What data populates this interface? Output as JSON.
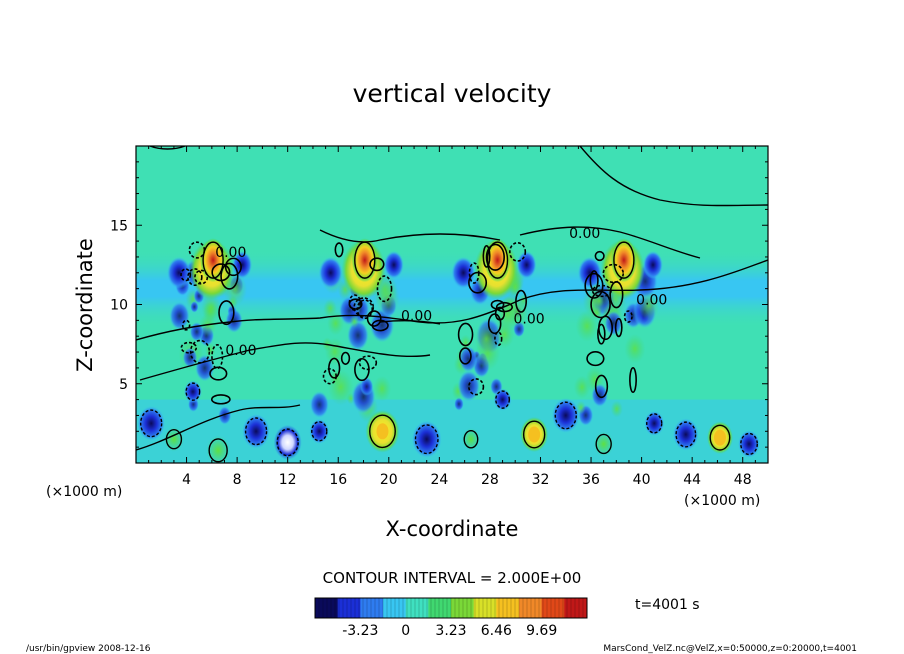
{
  "chart_data": {
    "type": "heatmap",
    "title": "vertical velocity",
    "xlabel": "X-coordinate",
    "ylabel": "Z-coordinate",
    "x_unit_left": "(×1000 m)",
    "x_unit_right": "(×1000 m)",
    "xlim": [
      0,
      50
    ],
    "ylim": [
      0,
      20
    ],
    "x_ticks": [
      4,
      8,
      12,
      16,
      20,
      24,
      28,
      32,
      36,
      40,
      44,
      48
    ],
    "y_ticks": [
      5,
      10,
      15
    ],
    "contour_interval_label": "CONTOUR INTERVAL = 2.000E+00",
    "contour_labels": [
      {
        "text": "0.00",
        "x": 22.2,
        "y": 9.0
      },
      {
        "text": "0.00",
        "x": 31.1,
        "y": 8.8
      },
      {
        "text": "0.00",
        "x": 35.5,
        "y": 14.2
      },
      {
        "text": "0.00",
        "x": 7.5,
        "y": 13.0
      },
      {
        "text": "0.00",
        "x": 8.3,
        "y": 6.8
      },
      {
        "text": "0.00",
        "x": 40.8,
        "y": 10.0
      }
    ],
    "updraft_columns_x": [
      6,
      18,
      28.5,
      38.5
    ],
    "colorbar": {
      "ticks": [
        "-3.23",
        "0",
        "3.23",
        "6.46",
        "9.69"
      ],
      "min": -6.46,
      "max": 12.92,
      "colors": [
        "#0a0a5a",
        "#1b2fd6",
        "#2e7cf0",
        "#38c6f2",
        "#3fe0c0",
        "#40d870",
        "#7ad838",
        "#d8e028",
        "#f5c020",
        "#f08828",
        "#e04818",
        "#c01818"
      ]
    },
    "time_label": "t=4001 s",
    "footer_left": "/usr/bin/gpview   2008-12-16",
    "footer_right": "MarsCond_VelZ.nc@VelZ,x=0:50000,z=0:20000,t=4001"
  },
  "colors": {
    "background_field": "#3fe0b4",
    "upper_field": "#36dfb0",
    "band": "#3cc4f0"
  }
}
